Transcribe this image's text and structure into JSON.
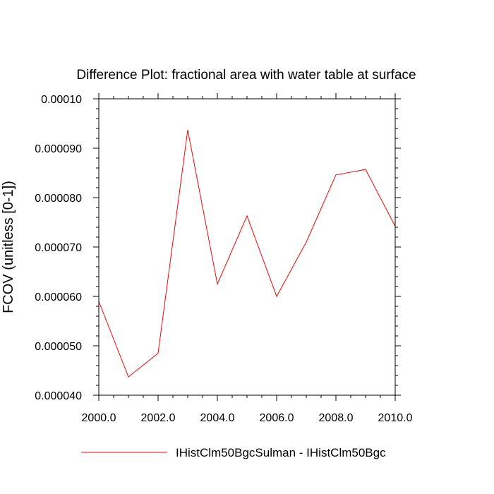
{
  "chart_data": {
    "type": "line",
    "title": "Difference Plot: fractional area with water table at surface",
    "ylabel": "FCOV  (unitless [0-1])",
    "xlabel": "",
    "xlim": [
      2000,
      2010
    ],
    "ylim": [
      4e-05,
      0.0001
    ],
    "x_ticks": [
      "2000.0",
      "2002.0",
      "2004.0",
      "2006.0",
      "2008.0",
      "2010.0"
    ],
    "x_tick_values": [
      2000,
      2002,
      2004,
      2006,
      2008,
      2010
    ],
    "y_ticks": [
      "0.000040",
      "0.000050",
      "0.000060",
      "0.000070",
      "0.000080",
      "0.000090",
      "0.00010"
    ],
    "y_tick_values": [
      4e-05,
      5e-05,
      6e-05,
      7e-05,
      8e-05,
      9e-05,
      0.0001
    ],
    "x": [
      2000,
      2001,
      2002,
      2003,
      2004,
      2005,
      2006,
      2007,
      2008,
      2009,
      2010
    ],
    "series": [
      {
        "name": "IHistClm50BgcSulman - IHistClm50Bgc",
        "color": "#ff0000",
        "values": [
          5.9e-05,
          4.37e-05,
          4.85e-05,
          9.37e-05,
          6.25e-05,
          7.63e-05,
          6e-05,
          7.1e-05,
          8.46e-05,
          8.57e-05,
          7.42e-05
        ]
      }
    ],
    "grid": false,
    "legend_position": "bottom"
  }
}
